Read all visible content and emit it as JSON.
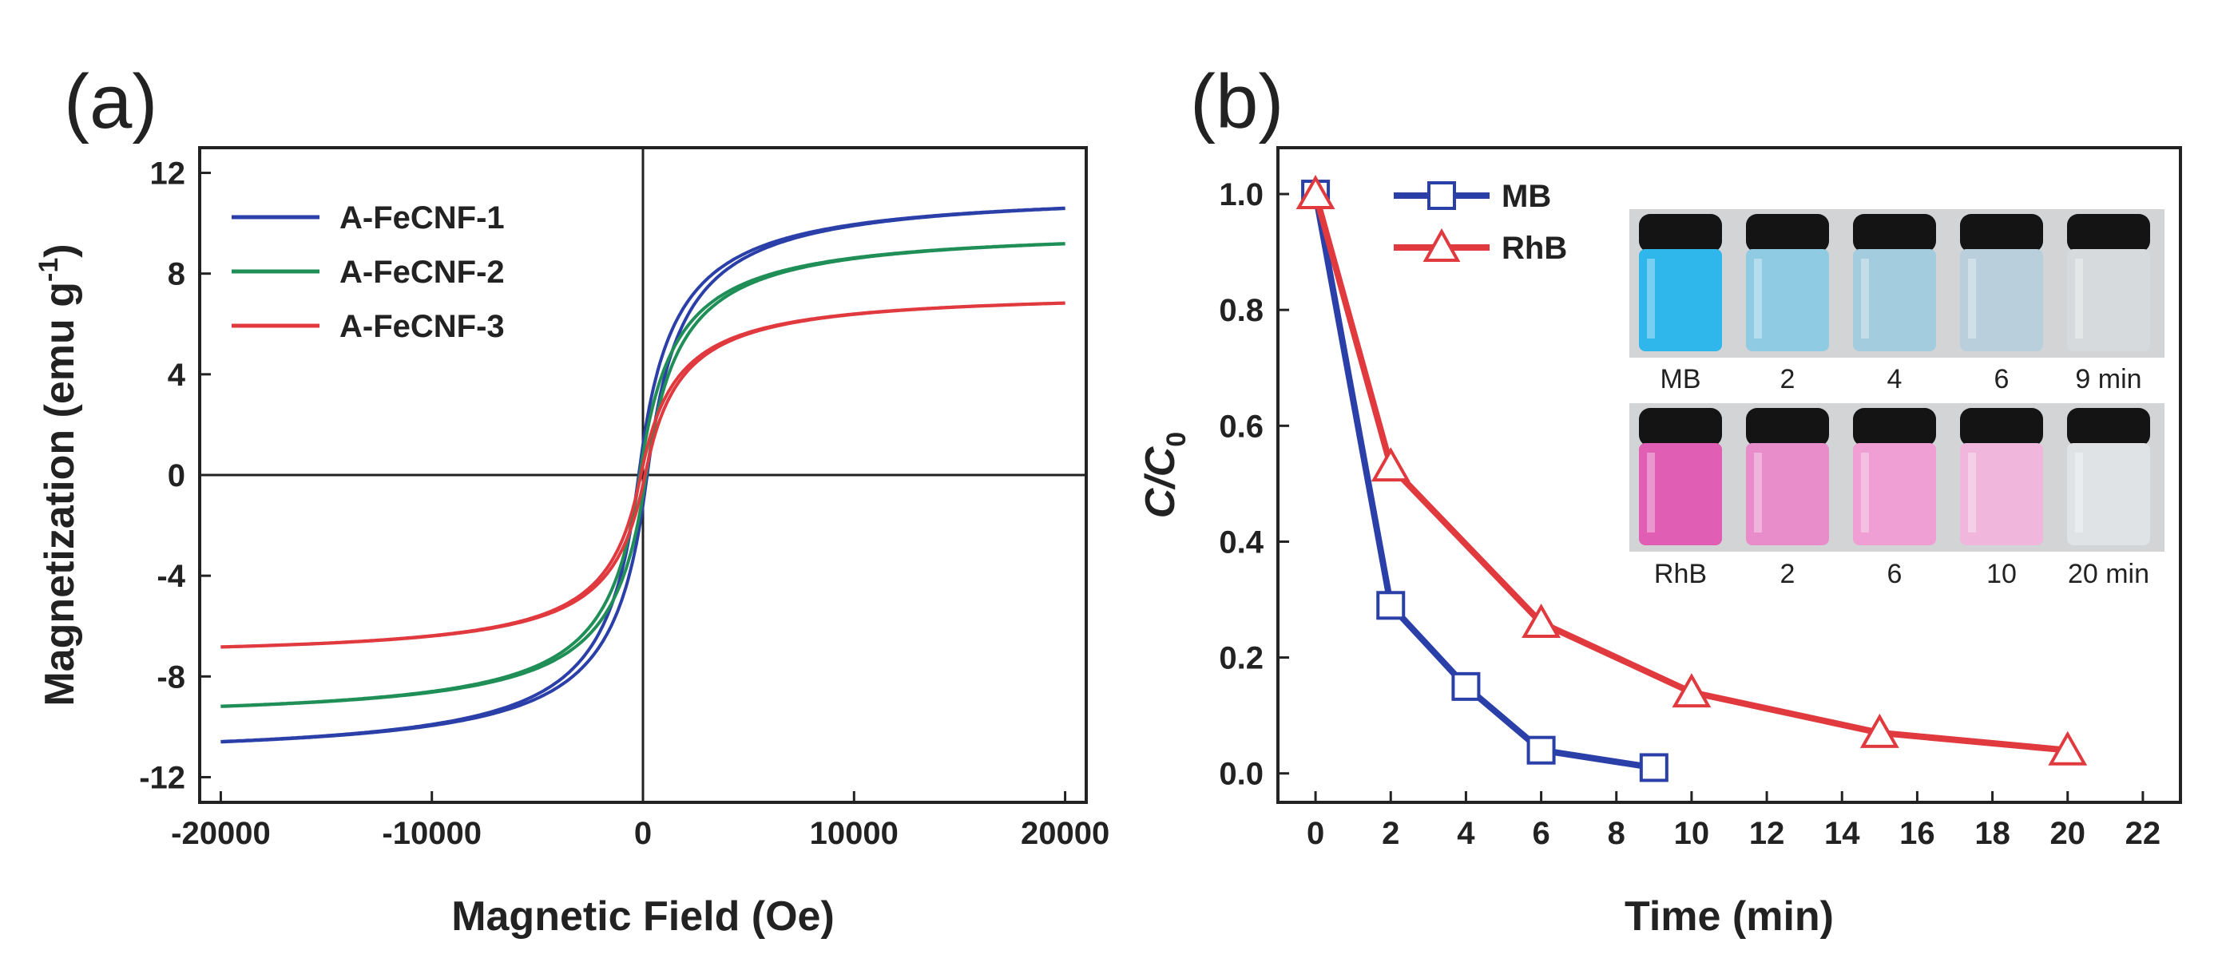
{
  "panels": {
    "a": "(a)",
    "b": "(b)"
  },
  "chart_data": [
    {
      "type": "line",
      "panel": "(a)",
      "xlabel": "Magnetic Field (Oe)",
      "ylabel": "Magnetization (emu g",
      "ylabel_sup": "-1",
      "ylabel_close": ")",
      "xlim": [
        -21000,
        21000
      ],
      "ylim": [
        -13,
        13
      ],
      "xticks": [
        -20000,
        -10000,
        0,
        10000,
        20000
      ],
      "yticks": [
        -12,
        -8,
        -4,
        0,
        4,
        8,
        12
      ],
      "zero_lines": true,
      "legend_position": "top-left",
      "series": [
        {
          "name": "A-FeCNF-1",
          "color": "#2b3fa8",
          "Ms": 11.3,
          "Hc": 200,
          "k": 1.55
        },
        {
          "name": "A-FeCNF-2",
          "color": "#1f8f57",
          "Ms": 9.8,
          "Hc": 150,
          "k": 1.55
        },
        {
          "name": "A-FeCNF-3",
          "color": "#e0393e",
          "Ms": 7.3,
          "Hc": 100,
          "k": 1.6
        }
      ]
    },
    {
      "type": "line",
      "panel": "(b)",
      "xlabel": "Time (min)",
      "ylabel": "C/C",
      "ylabel_sub": "0",
      "xlim": [
        -1,
        23
      ],
      "ylim": [
        -0.05,
        1.08
      ],
      "xticks": [
        0,
        2,
        4,
        6,
        8,
        10,
        12,
        14,
        16,
        18,
        20,
        22
      ],
      "yticks": [
        0.0,
        0.2,
        0.4,
        0.6,
        0.8,
        1.0
      ],
      "legend_position": "top-left",
      "series": [
        {
          "name": "MB",
          "color": "#2b3fa8",
          "marker": "square",
          "x": [
            0,
            2,
            4,
            6,
            9
          ],
          "y": [
            1.0,
            0.29,
            0.15,
            0.04,
            0.01
          ]
        },
        {
          "name": "RhB",
          "color": "#e0393e",
          "marker": "triangle",
          "x": [
            0,
            2,
            6,
            10,
            15,
            20
          ],
          "y": [
            1.0,
            0.53,
            0.26,
            0.14,
            0.07,
            0.04
          ]
        }
      ],
      "insets": [
        {
          "name": "MB",
          "labels": [
            "MB",
            "2",
            "4",
            "6",
            "9 min"
          ],
          "colors": [
            "#2fb6ea",
            "#8fcbe3",
            "#a3ccde",
            "#b9d0dc",
            "#d6dadc"
          ]
        },
        {
          "name": "RhB",
          "labels": [
            "RhB",
            "2",
            "6",
            "10",
            "20 min"
          ],
          "colors": [
            "#e05fb5",
            "#e98cca",
            "#ef9fd3",
            "#f0b6dc",
            "#dfe3e6"
          ]
        }
      ]
    }
  ]
}
